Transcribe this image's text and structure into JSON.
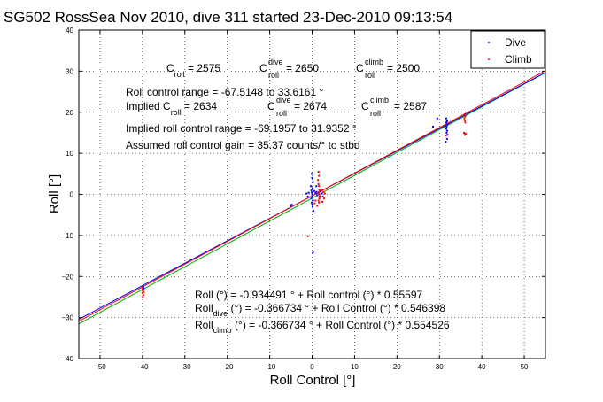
{
  "chart_data": {
    "type": "scatter",
    "title": "SG502 RossSea Nov 2010, dive 311 started 23-Dec-2010 09:13:54",
    "xlabel": "Roll Control [°]",
    "ylabel": "Roll [°]",
    "xlim": [
      -55,
      55
    ],
    "ylim": [
      -40,
      40
    ],
    "xticks": [
      -50,
      -40,
      -30,
      -20,
      -10,
      0,
      10,
      20,
      30,
      40,
      50
    ],
    "yticks": [
      -40,
      -30,
      -20,
      -10,
      0,
      10,
      20,
      30,
      40
    ],
    "grid": true,
    "legend_position": "top-right",
    "legend": [
      {
        "label": "Dive",
        "color": "#0000ff"
      },
      {
        "label": "Climb",
        "color": "#ff0000"
      }
    ],
    "annotations": {
      "c_roll": {
        "base": "C",
        "sub": "roll",
        "text": " = 2575"
      },
      "c_roll_dive": {
        "base": "C",
        "sup": "dive",
        "sub": "roll",
        "text": " = 2650"
      },
      "c_roll_climb": {
        "base": "C",
        "sup": "climb",
        "sub": "roll",
        "text": " = 2500"
      },
      "range": "Roll control range = -67.5148 to 33.6161 °",
      "implied_c": {
        "prefix": "Implied C",
        "sub": "roll",
        "text": " = 2634"
      },
      "implied_dive": {
        "base": "C",
        "sup": "dive",
        "sub": "roll",
        "text": " = 2674"
      },
      "implied_climb": {
        "base": "C",
        "sup": "climb",
        "sub": "roll",
        "text": " = 2587"
      },
      "implied_range": "Implied roll control range = -69.1957 to 31.9352 °",
      "gain": "Assumed roll control gain = 35.37 counts/° to stbd",
      "fit_all": "Roll (°) = -0.934491 ° + Roll control (°) * 0.55597",
      "fit_dive": {
        "base": "Roll",
        "sub": "dive",
        "text": " (°) = -0.366734 ° + Roll Control (°) * 0.546398"
      },
      "fit_climb": {
        "base": "Roll",
        "sub": "climb",
        "text": " (°) = -0.366734 ° + Roll Control (°) * 0.554526"
      }
    },
    "fit_lines": [
      {
        "name": "all",
        "intercept": -0.934491,
        "slope": 0.55597,
        "color": "#00aa00"
      },
      {
        "name": "dive",
        "intercept": -0.366734,
        "slope": 0.546398,
        "color": "#0000ff"
      },
      {
        "name": "climb",
        "intercept": -0.366734,
        "slope": 0.554526,
        "color": "#ff0000"
      }
    ],
    "series": [
      {
        "name": "Dive",
        "color": "#0000ff",
        "points": [
          [
            -39.8,
            -22.5
          ],
          [
            -39.7,
            -23.0
          ],
          [
            -39.8,
            -22.8
          ],
          [
            -5.0,
            -2.8
          ],
          [
            -4.8,
            -2.5
          ],
          [
            -0.2,
            1.0
          ],
          [
            -0.1,
            0.5
          ],
          [
            0.0,
            0.0
          ],
          [
            0.1,
            -0.5
          ],
          [
            -0.2,
            -1.0
          ],
          [
            0.2,
            -1.5
          ],
          [
            -0.1,
            -2.0
          ],
          [
            0.0,
            -2.5
          ],
          [
            0.1,
            1.5
          ],
          [
            -0.3,
            2.0
          ],
          [
            0.2,
            3.0
          ],
          [
            0.0,
            4.0
          ],
          [
            -0.1,
            5.0
          ],
          [
            0.1,
            -3.0
          ],
          [
            0.3,
            -4.0
          ],
          [
            0.2,
            -14.2
          ],
          [
            0.5,
            0.8
          ],
          [
            0.8,
            0.3
          ],
          [
            1.0,
            0.6
          ],
          [
            1.2,
            -0.2
          ],
          [
            1.5,
            0.4
          ],
          [
            2.0,
            0.8
          ],
          [
            1.8,
            -0.5
          ],
          [
            2.3,
            0.2
          ],
          [
            -1.0,
            -0.5
          ],
          [
            -1.3,
            0.2
          ],
          [
            -0.8,
            0.4
          ],
          [
            1.0,
            2.0
          ],
          [
            31.8,
            18.0
          ],
          [
            31.6,
            17.5
          ],
          [
            31.9,
            17.0
          ],
          [
            31.7,
            16.5
          ],
          [
            31.6,
            16.0
          ],
          [
            31.8,
            15.5
          ],
          [
            31.7,
            15.0
          ],
          [
            31.9,
            14.5
          ],
          [
            31.8,
            13.5
          ],
          [
            31.6,
            18.5
          ],
          [
            31.5,
            12.8
          ],
          [
            28.5,
            16.5
          ],
          [
            29.5,
            18.5
          ],
          [
            36.0,
            19.5
          ],
          [
            31.8,
            17.8
          ]
        ]
      },
      {
        "name": "Climb",
        "color": "#ff0000",
        "points": [
          [
            -40.0,
            -23.0
          ],
          [
            -39.9,
            -23.5
          ],
          [
            -40.0,
            -24.0
          ],
          [
            -39.8,
            -24.5
          ],
          [
            -39.9,
            -25.0
          ],
          [
            -39.7,
            -23.8
          ],
          [
            -40.0,
            -22.5
          ],
          [
            -1.0,
            -10.2
          ],
          [
            1.5,
            5.5
          ],
          [
            1.6,
            4.5
          ],
          [
            1.4,
            3.5
          ],
          [
            1.5,
            2.5
          ],
          [
            1.6,
            2.0
          ],
          [
            1.7,
            1.0
          ],
          [
            1.5,
            0.5
          ],
          [
            1.6,
            0.0
          ],
          [
            1.8,
            -0.5
          ],
          [
            1.7,
            -1.0
          ],
          [
            1.5,
            -1.5
          ],
          [
            1.6,
            -2.0
          ],
          [
            2.5,
            1.2
          ],
          [
            2.7,
            0.6
          ],
          [
            2.5,
            -0.5
          ],
          [
            2.8,
            -1.0
          ],
          [
            2.4,
            -1.8
          ],
          [
            3.0,
            0.2
          ],
          [
            2.2,
            0.9
          ],
          [
            0.8,
            -1.5
          ],
          [
            0.6,
            -2.2
          ],
          [
            1.2,
            -2.8
          ],
          [
            36.0,
            19.5
          ],
          [
            36.1,
            19.0
          ],
          [
            35.9,
            18.5
          ],
          [
            36.0,
            18.0
          ],
          [
            36.1,
            17.5
          ],
          [
            35.8,
            15.0
          ],
          [
            36.0,
            14.5
          ],
          [
            36.2,
            14.8
          ],
          [
            31.5,
            14.3
          ]
        ]
      }
    ]
  }
}
